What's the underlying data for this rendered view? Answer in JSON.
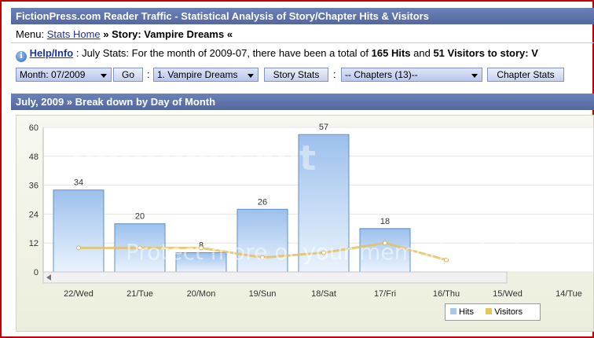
{
  "header": {
    "title": "FictionPress.com Reader Traffic - Statistical Analysis of Story/Chapter Hits & Visitors"
  },
  "menu": {
    "prefix": "Menu: ",
    "stats_home": "Stats Home",
    "sep": " » ",
    "story_label": "Story: Vampire Dreams «"
  },
  "info": {
    "icon": "i",
    "help_link": "Help/Info",
    "text1": " : July Stats: For the month of 2009-07, there have been a total of ",
    "hits": "165 Hits",
    "text2": " and ",
    "visitors": "51 Visitors",
    "text3": " to story: V"
  },
  "controls": {
    "month_select": "Month: 07/2009",
    "go_button": "Go",
    "colon1": ":",
    "story_select": "1. Vampire Dreams",
    "story_stats_button": "Story Stats",
    "colon2": ":",
    "chapters_select": "-- Chapters (13)--",
    "chapter_stats_button": "Chapter Stats"
  },
  "section": {
    "title": "July, 2009 » Break down by Day of Month"
  },
  "chart_data": {
    "type": "bar",
    "categories": [
      "22/Wed",
      "21/Tue",
      "20/Mon",
      "19/Sun",
      "18/Sat",
      "17/Fri",
      "16/Thu",
      "15/Wed",
      "14/Tue"
    ],
    "series": [
      {
        "name": "Hits",
        "type": "bar",
        "values": [
          34,
          20,
          8,
          26,
          57,
          18,
          null,
          null,
          null
        ],
        "color": "#a8c8ef"
      },
      {
        "name": "Visitors",
        "type": "line",
        "values": [
          10,
          10,
          10,
          6,
          8,
          12,
          5,
          null,
          null
        ],
        "color": "#e7c45a"
      }
    ],
    "y_ticks": [
      "0",
      "12",
      "24",
      "36",
      "48",
      "60"
    ],
    "ylim": [
      0,
      60
    ],
    "legend": "bottom-right"
  },
  "legend": {
    "hits": "Hits",
    "visitors": "Visitors"
  },
  "watermark": {
    "text": "photobucket",
    "text2": "Protect more of your memories for less!"
  },
  "colors": {
    "header_bg": "#5b71a8",
    "frame": "#c00000",
    "link": "#1a33a8"
  }
}
